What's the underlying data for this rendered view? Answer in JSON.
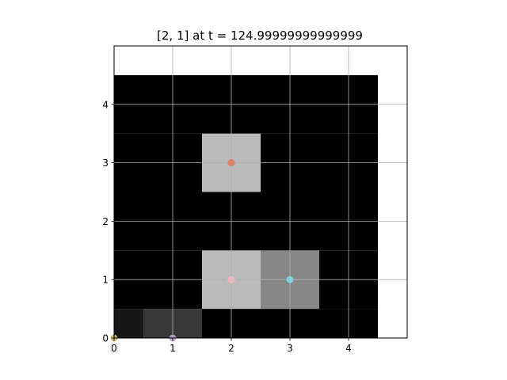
{
  "chart_data": {
    "type": "heatmap",
    "title": "[2, 1] at t = 124.99999999999999",
    "xlabel": "",
    "ylabel": "",
    "xlim": [
      0,
      5
    ],
    "ylim": [
      0,
      5
    ],
    "grid": true,
    "x_ticks": [
      "0",
      "1",
      "2",
      "3",
      "4"
    ],
    "y_ticks": [
      "0",
      "1",
      "2",
      "3",
      "4"
    ],
    "grid_size": [
      5,
      5
    ],
    "cell_values": [
      [
        0.09,
        0.22,
        0.0,
        0.0,
        0.0
      ],
      [
        0.0,
        0.0,
        0.73,
        0.53,
        0.0
      ],
      [
        0.0,
        0.0,
        0.0,
        0.0,
        0.0
      ],
      [
        0.0,
        0.0,
        0.73,
        0.0,
        0.0
      ],
      [
        0.0,
        0.0,
        0.0,
        0.0,
        0.0
      ]
    ],
    "markers": [
      {
        "x": 0,
        "y": 0,
        "color": "#c8b46a"
      },
      {
        "x": 1,
        "y": 0,
        "color": "#b4a0c8"
      },
      {
        "x": 2,
        "y": 1,
        "color": "#f4b6c2"
      },
      {
        "x": 3,
        "y": 1,
        "color": "#7fd8e8"
      },
      {
        "x": 2,
        "y": 3,
        "color": "#e07a5f"
      }
    ]
  }
}
